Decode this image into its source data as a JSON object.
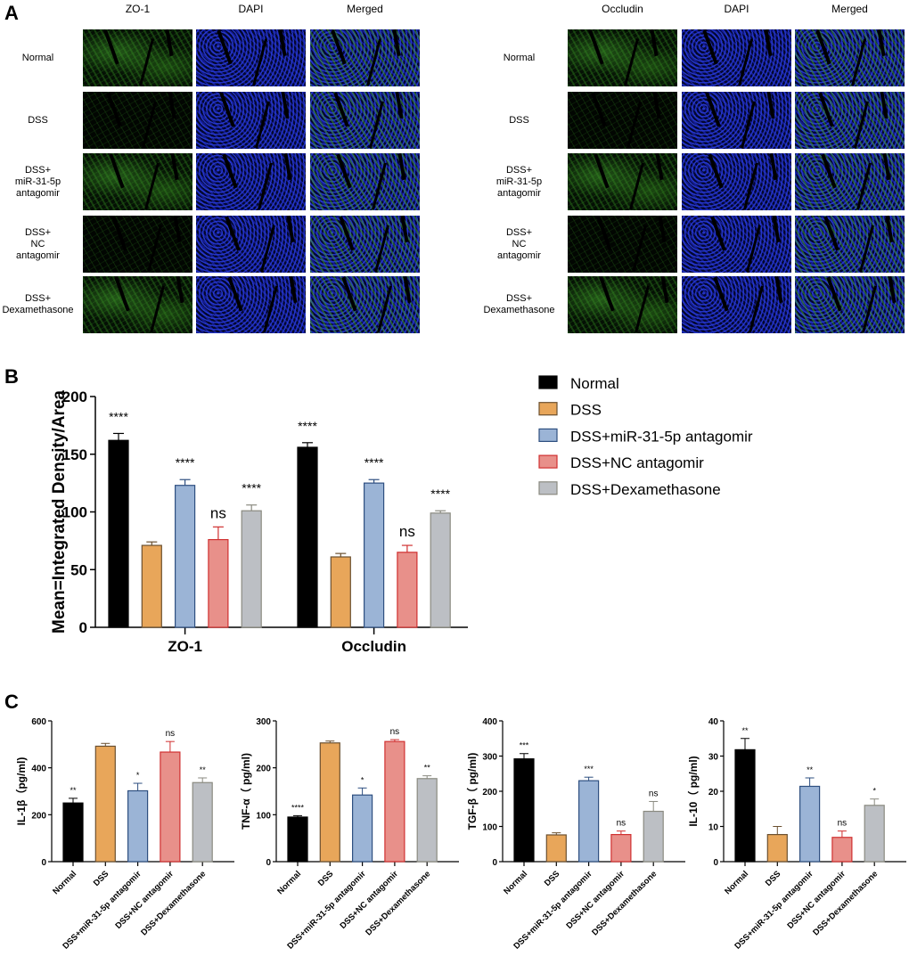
{
  "panel_labels": {
    "a": "A",
    "b": "B",
    "c": "C"
  },
  "panel_a": {
    "left": {
      "columns": [
        "ZO-1",
        "DAPI",
        "Merged"
      ]
    },
    "right": {
      "columns": [
        "Occludin",
        "DAPI",
        "Merged"
      ]
    },
    "rows": [
      {
        "label": [
          "Normal"
        ],
        "green_level": "bright"
      },
      {
        "label": [
          "DSS"
        ],
        "green_level": "dim"
      },
      {
        "label": [
          "DSS+",
          "miR-31-5p",
          "antagomir"
        ],
        "green_level": "bright"
      },
      {
        "label": [
          "DSS+",
          "NC",
          "antagomir"
        ],
        "green_level": "dim"
      },
      {
        "label": [
          "DSS+",
          "Dexamethasone"
        ],
        "green_level": "bright"
      }
    ],
    "channel_colors": {
      "tight_junction": "#3c9628",
      "dapi": "#2838dc"
    }
  },
  "colors": {
    "Normal": {
      "fill": "#000000",
      "stroke": "#000000"
    },
    "DSS": {
      "fill": "#e8a65a",
      "stroke": "#6b5030"
    },
    "DSS+miR-31-5p antagomir": {
      "fill": "#9bb4d6",
      "stroke": "#2e4f80"
    },
    "DSS+NC antagomir": {
      "fill": "#e8908a",
      "stroke": "#d03030"
    },
    "DSS+Dexamethasone": {
      "fill": "#bcbfc4",
      "stroke": "#8a8a80"
    }
  },
  "chart_data": [
    {
      "type": "bar",
      "panel": "B",
      "ylabel": "Mean=Integrated Density/Area",
      "ylim": [
        0,
        200
      ],
      "yticks": [
        0,
        50,
        100,
        150,
        200
      ],
      "categories": [
        "ZO-1",
        "Occludin"
      ],
      "legend": {
        "placement": "right",
        "entries": [
          "Normal",
          "DSS",
          "DSS+miR-31-5p antagomir",
          "DSS+NC antagomir",
          "DSS+Dexamethasone"
        ]
      },
      "series": [
        {
          "name": "Normal",
          "values": [
            162,
            156
          ],
          "errors": [
            6,
            4
          ],
          "sig": [
            "****",
            "****"
          ]
        },
        {
          "name": "DSS",
          "values": [
            71,
            61
          ],
          "errors": [
            3,
            3
          ],
          "sig": [
            "",
            ""
          ]
        },
        {
          "name": "DSS+miR-31-5p antagomir",
          "values": [
            123,
            125
          ],
          "errors": [
            5,
            3
          ],
          "sig": [
            "****",
            "****"
          ]
        },
        {
          "name": "DSS+NC antagomir",
          "values": [
            76,
            65
          ],
          "errors": [
            11,
            6
          ],
          "sig": [
            "ns",
            "ns"
          ]
        },
        {
          "name": "DSS+Dexamethasone",
          "values": [
            101,
            99
          ],
          "errors": [
            5,
            2
          ],
          "sig": [
            "****",
            "****"
          ]
        }
      ]
    },
    {
      "type": "bar",
      "panel": "C",
      "ylabel": "IL-1β（pg/ml)",
      "ylim": [
        0,
        600
      ],
      "yticks": [
        0,
        200,
        400,
        600
      ],
      "categories": [
        "Normal",
        "DSS",
        "DSS+miR-31-5p antagomir",
        "DSS+NC antagomir",
        "DSS+Dexamethasone"
      ],
      "values": [
        250,
        492,
        302,
        467,
        337
      ],
      "errors": [
        20,
        12,
        32,
        45,
        20
      ],
      "sig": [
        "**",
        "",
        "*",
        "ns",
        "**"
      ]
    },
    {
      "type": "bar",
      "panel": "C",
      "ylabel": "TNF-α（ pg/ml)",
      "ylim": [
        0,
        300
      ],
      "yticks": [
        0,
        100,
        200,
        300
      ],
      "categories": [
        "Normal",
        "DSS",
        "DSS+miR-31-5p antagomir",
        "DSS+NC antagomir",
        "DSS+Dexamethasone"
      ],
      "values": [
        95,
        253,
        142,
        256,
        177
      ],
      "errors": [
        3,
        4,
        15,
        4,
        6
      ],
      "sig": [
        "****",
        "",
        "*",
        "ns",
        "**"
      ]
    },
    {
      "type": "bar",
      "panel": "C",
      "ylabel": "TGF-β（ pg/ml)",
      "ylim": [
        0,
        400
      ],
      "yticks": [
        0,
        100,
        200,
        300,
        400
      ],
      "categories": [
        "Normal",
        "DSS",
        "DSS+miR-31-5p antagomir",
        "DSS+NC antagomir",
        "DSS+Dexamethasone"
      ],
      "values": [
        292,
        76,
        230,
        77,
        143
      ],
      "errors": [
        15,
        6,
        10,
        10,
        28
      ],
      "sig": [
        "***",
        "",
        "***",
        "ns",
        "ns"
      ]
    },
    {
      "type": "bar",
      "panel": "C",
      "ylabel": "IL-10（ pg/ml)",
      "ylim": [
        0,
        40
      ],
      "yticks": [
        0,
        10,
        20,
        30,
        40
      ],
      "categories": [
        "Normal",
        "DSS",
        "DSS+miR-31-5p antagomir",
        "DSS+NC antagomir",
        "DSS+Dexamethasone"
      ],
      "values": [
        31.8,
        7.7,
        21.4,
        6.9,
        16
      ],
      "errors": [
        3.2,
        2.3,
        2.4,
        1.8,
        1.8
      ],
      "sig": [
        "**",
        "",
        "**",
        "ns",
        "*"
      ]
    }
  ]
}
